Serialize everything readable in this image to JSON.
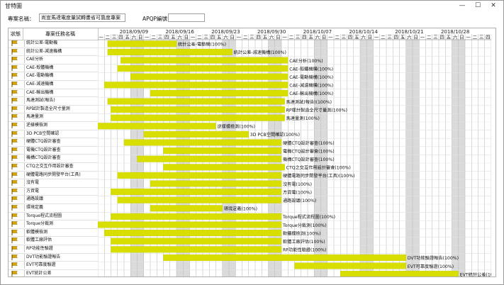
{
  "window": {
    "title": "甘特圖",
    "controls": {
      "minimize": "—",
      "maximize": "☐",
      "close": "✕"
    }
  },
  "toolbar": {
    "project_name_label": "專案名稱：",
    "project_name_value": "尚宣馬達電度量試轉畫省可靠度專案",
    "apqp_label": "APQP編號：",
    "apqp_value": ""
  },
  "headers": {
    "status": "狀態",
    "task_name": "專案任務名稱"
  },
  "calendar": {
    "week_labels": [
      "2018/09/09",
      "2018/09/16",
      "2018/09/23",
      "2018/09/30",
      "2018/10/07",
      "2018/10/14",
      "2018/10/21",
      "2018/10/28"
    ],
    "day_labels": [
      "一",
      "二",
      "三",
      "四",
      "五",
      "六",
      "日"
    ]
  },
  "tasks": [
    {
      "name": "統計公差-電動機",
      "label": "統計公差-電動機(100%)",
      "start": 1.5,
      "end": 12.0
    },
    {
      "name": "統計公差-減速機構",
      "label": "統計公差-減速機構(100%)",
      "start": 1.5,
      "end": 20.5
    },
    {
      "name": "CAE分析",
      "label": "CAE分析(100%)",
      "start": 3.5,
      "end": 29.0
    },
    {
      "name": "CAE-殼體機構",
      "label": "CAE-殼體機構(100%)",
      "start": 3.0,
      "end": 29.0
    },
    {
      "name": "CAE-電動機構",
      "label": "CAE-電動機構(100%)",
      "start": 5.0,
      "end": 29.0
    },
    {
      "name": "CAE-減速機構",
      "label": "CAE-減速機構(100%)",
      "start": 1.0,
      "end": 29.0
    },
    {
      "name": "CAE-輸出機構",
      "label": "CAE-輸出機構(100%)",
      "start": 8.0,
      "end": 29.0
    },
    {
      "name": "馬達測試(報告)",
      "label": "馬達測試(報告)(100%)",
      "start": 1.5,
      "end": 28.5
    },
    {
      "name": "RP試計製造全尺寸量測",
      "label": "RP樣計製造全尺寸量測(100%)",
      "start": 2.0,
      "end": 28.5
    },
    {
      "name": "馬達量測",
      "label": "馬達量測(100%)",
      "start": 2.0,
      "end": 28.5
    },
    {
      "name": "逆樣模檢測",
      "label": "逆樣模檢測(100%)",
      "start": 0.0,
      "end": 18.0
    },
    {
      "name": "3D PCB空間確認",
      "label": "3D PCB空間確認(100%)",
      "start": 7.0,
      "end": 23.0
    },
    {
      "name": "硬體CTQ設計審查",
      "label": "硬體CTQ設計審查(100%)",
      "start": 4.0,
      "end": 28.0
    },
    {
      "name": "電機CTQ設計審查",
      "label": "電機CTQ設計審查(100%)",
      "start": 10.0,
      "end": 28.0
    },
    {
      "name": "機構CTQ設計審查",
      "label": "機構CTQ設計審查(100%)",
      "start": 6.0,
      "end": 28.0
    },
    {
      "name": "CTQ之交互作用設計審查",
      "label": "CTQ之交互作用設計審查(100%)",
      "start": 10.0,
      "end": 28.5
    },
    {
      "name": "硬體電路同步開發平台(工具)",
      "label": "硬體電路同步開發平台(工具)(100%)",
      "start": 3.0,
      "end": 28.0
    },
    {
      "name": "沒有電",
      "label": "沒有電(100%)",
      "start": 8.0,
      "end": 28.0
    },
    {
      "name": "方資電",
      "label": "方資電(100%)",
      "start": 2.0,
      "end": 28.0
    },
    {
      "name": "通路設議",
      "label": "通路設議(100%)",
      "start": 3.0,
      "end": 28.0
    },
    {
      "name": "環境定義",
      "label": "環境定義(100%)",
      "start": 8.0,
      "end": 19.0
    },
    {
      "name": "Torque程式流程圖",
      "label": "Torque程式流程圖(100%)",
      "start": 2.0,
      "end": 28.0
    },
    {
      "name": "Torque分裁測",
      "label": "Torque分裁測(100%)",
      "start": 0.0,
      "end": 28.0
    },
    {
      "name": "軟體模檢測",
      "label": "軟體模檢測(100%)",
      "start": 1.0,
      "end": 28.0
    },
    {
      "name": "軟體工廠評估",
      "label": "軟體工廠評估(100%)",
      "start": 2.0,
      "end": 28.0
    },
    {
      "name": "RP功能性驗證",
      "label": "RP功能性驗證(100%)",
      "start": 2.0,
      "end": 28.0
    },
    {
      "name": "DVT功能驗證報告",
      "label": "DVT功能驗證報告(100%)",
      "start": 10.0,
      "end": 47.0
    },
    {
      "name": "EVT可靠度驗證",
      "label": "EVT可靠度驗證(100%)",
      "start": 30.0,
      "end": 47.0
    },
    {
      "name": "EVT統計公差",
      "label": "EVT統計公差(100%)",
      "start": 37.0,
      "end": 55.0
    }
  ],
  "colors": {
    "bar": "#d8df00",
    "bar_edge": "#c7cc00",
    "weekend": "#dadada",
    "grid": "#b5b5b5",
    "flag": "#d9a400"
  }
}
